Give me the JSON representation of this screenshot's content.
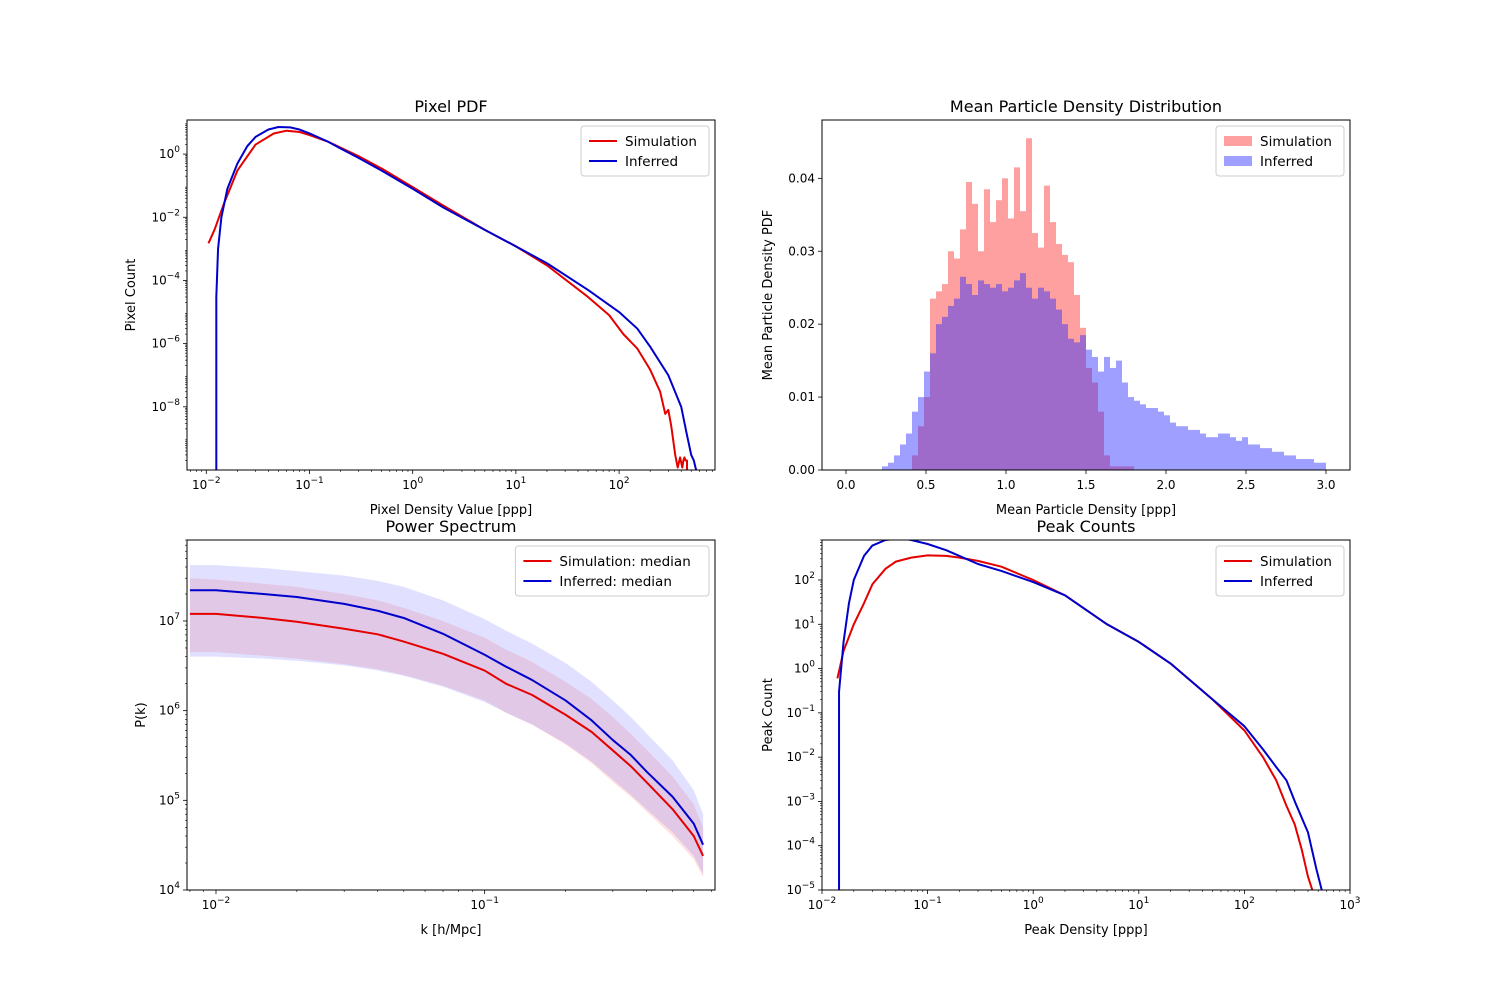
{
  "chart_data": [
    {
      "type": "line",
      "title": "Pixel PDF",
      "xlabel": "Pixel Density Value [ppp]",
      "ylabel": "Pixel Count",
      "xscale": "log",
      "yscale": "log",
      "xlim": [
        0.0065,
        850
      ],
      "ylim": [
        1e-10,
        12
      ],
      "xticks": [
        {
          "v": 0.01,
          "m": "10",
          "e": "−2"
        },
        {
          "v": 0.1,
          "m": "10",
          "e": "−1"
        },
        {
          "v": 1,
          "m": "10",
          "e": "0"
        },
        {
          "v": 10,
          "m": "10",
          "e": "1"
        },
        {
          "v": 100,
          "m": "10",
          "e": "2"
        }
      ],
      "yticks": [
        {
          "v": 1e-08,
          "m": "10",
          "e": "−8"
        },
        {
          "v": 1e-06,
          "m": "10",
          "e": "−6"
        },
        {
          "v": 0.0001,
          "m": "10",
          "e": "−4"
        },
        {
          "v": 0.01,
          "m": "10",
          "e": "−2"
        },
        {
          "v": 1,
          "m": "10",
          "e": "0"
        }
      ],
      "grid": false,
      "legend": "top-right",
      "series": [
        {
          "name": "Simulation",
          "color": "#e50000",
          "x": [
            0.0105,
            0.012,
            0.015,
            0.02,
            0.03,
            0.045,
            0.06,
            0.08,
            0.1,
            0.15,
            0.2,
            0.3,
            0.5,
            1,
            2,
            5,
            10,
            20,
            50,
            80,
            110,
            150,
            200,
            250,
            280,
            300,
            320,
            350,
            370,
            390,
            410,
            420,
            430,
            440,
            455,
            455
          ],
          "y": [
            0.0015,
            0.004,
            0.03,
            0.3,
            2.0,
            4.5,
            5.5,
            5.0,
            4.0,
            2.5,
            1.6,
            0.85,
            0.35,
            0.09,
            0.023,
            0.004,
            0.0012,
            0.0003,
            3e-05,
            8e-06,
            2e-06,
            7e-07,
            1.5e-07,
            3e-08,
            6e-09,
            8e-09,
            2.5e-09,
            3e-10,
            1.2e-10,
            2.5e-10,
            1.2e-10,
            2e-10,
            2.5e-10,
            2e-10,
            2e-10,
            1e-10
          ]
        },
        {
          "name": "Inferred",
          "color": "#0000cc",
          "x": [
            0.0125,
            0.0125,
            0.013,
            0.014,
            0.016,
            0.02,
            0.025,
            0.03,
            0.04,
            0.05,
            0.065,
            0.08,
            0.1,
            0.15,
            0.2,
            0.3,
            0.5,
            1,
            2,
            5,
            10,
            20,
            50,
            100,
            150,
            200,
            300,
            400,
            450,
            500,
            530,
            550,
            560
          ],
          "y": [
            1e-10,
            3e-05,
            0.001,
            0.01,
            0.08,
            0.5,
            1.8,
            3.5,
            6.0,
            7.2,
            7.0,
            6.0,
            4.5,
            2.5,
            1.5,
            0.75,
            0.3,
            0.08,
            0.02,
            0.004,
            0.0012,
            0.00035,
            5e-05,
            1e-05,
            3e-06,
            8e-07,
            1e-07,
            1e-08,
            1.5e-09,
            3e-10,
            2e-10,
            1.2e-10,
            1e-10
          ]
        }
      ]
    },
    {
      "type": "bar",
      "title": "Mean Particle Density Distribution",
      "xlabel": "Mean Particle Density [ppp]",
      "ylabel": "Mean Particle Density PDF",
      "xscale": "linear",
      "yscale": "linear",
      "xlim": [
        -0.15,
        3.15
      ],
      "ylim": [
        0,
        0.048
      ],
      "xticks": [
        {
          "v": 0,
          "label": "0.0"
        },
        {
          "v": 0.5,
          "label": "0.5"
        },
        {
          "v": 1,
          "label": "1.0"
        },
        {
          "v": 1.5,
          "label": "1.5"
        },
        {
          "v": 2,
          "label": "2.0"
        },
        {
          "v": 2.5,
          "label": "2.5"
        },
        {
          "v": 3,
          "label": "3.0"
        }
      ],
      "yticks": [
        {
          "v": 0,
          "label": "0.00"
        },
        {
          "v": 0.01,
          "label": "0.01"
        },
        {
          "v": 0.02,
          "label": "0.02"
        },
        {
          "v": 0.03,
          "label": "0.03"
        },
        {
          "v": 0.04,
          "label": "0.04"
        }
      ],
      "grid": false,
      "legend": "top-right",
      "bin_start": 0.0,
      "bin_width": 0.0375,
      "series": [
        {
          "name": "Simulation",
          "color": "#ff2d2d",
          "opacity": 0.45,
          "values": [
            0,
            0,
            0,
            0,
            0,
            0,
            0,
            0,
            0,
            0,
            0,
            0.002,
            0.006,
            0.01,
            0.0235,
            0.0245,
            0.0255,
            0.03,
            0.029,
            0.033,
            0.0395,
            0.0365,
            0.03,
            0.0385,
            0.034,
            0.037,
            0.04,
            0.0345,
            0.0415,
            0.0355,
            0.0455,
            0.0325,
            0.0305,
            0.039,
            0.034,
            0.031,
            0.0295,
            0.0285,
            0.024,
            0.0195,
            0.014,
            0.012,
            0.008,
            0.002,
            0.0005,
            0.0005,
            0.0005,
            0.0005,
            0,
            0,
            0,
            0,
            0,
            0,
            0,
            0,
            0,
            0,
            0,
            0,
            0,
            0,
            0,
            0,
            0,
            0,
            0,
            0,
            0,
            0,
            0,
            0,
            0,
            0,
            0,
            0,
            0,
            0,
            0,
            0
          ]
        },
        {
          "name": "Inferred",
          "color": "#2a2aff",
          "opacity": 0.45,
          "values": [
            0,
            0,
            0,
            0,
            0,
            0,
            0.0005,
            0.001,
            0.002,
            0.0035,
            0.005,
            0.008,
            0.01,
            0.0135,
            0.016,
            0.02,
            0.021,
            0.0225,
            0.0235,
            0.0265,
            0.0255,
            0.024,
            0.026,
            0.0255,
            0.025,
            0.0255,
            0.0245,
            0.025,
            0.026,
            0.027,
            0.025,
            0.0235,
            0.025,
            0.0245,
            0.0235,
            0.022,
            0.02,
            0.018,
            0.0175,
            0.0185,
            0.0165,
            0.0155,
            0.0135,
            0.0155,
            0.014,
            0.015,
            0.012,
            0.01,
            0.0095,
            0.009,
            0.0085,
            0.0085,
            0.008,
            0.0075,
            0.0065,
            0.006,
            0.006,
            0.0055,
            0.0055,
            0.005,
            0.0045,
            0.0045,
            0.005,
            0.005,
            0.0045,
            0.004,
            0.0045,
            0.0035,
            0.0035,
            0.003,
            0.003,
            0.0025,
            0.0025,
            0.002,
            0.002,
            0.0015,
            0.0015,
            0.0015,
            0.001,
            0.001
          ]
        }
      ]
    },
    {
      "type": "line",
      "title": "Power Spectrum",
      "xlabel": "k [h/Mpc]",
      "ylabel": "P(k)",
      "xscale": "log",
      "yscale": "log",
      "xlim": [
        0.0078,
        0.72
      ],
      "ylim": [
        10000,
        80000000
      ],
      "xticks": [
        {
          "v": 0.01,
          "m": "10",
          "e": "−2"
        },
        {
          "v": 0.1,
          "m": "10",
          "e": "−1"
        }
      ],
      "yticks": [
        {
          "v": 10000,
          "m": "10",
          "e": "4"
        },
        {
          "v": 100000,
          "m": "10",
          "e": "5"
        },
        {
          "v": 1000000,
          "m": "10",
          "e": "6"
        },
        {
          "v": 10000000,
          "m": "10",
          "e": "7"
        }
      ],
      "grid": false,
      "legend": "top-right",
      "series": [
        {
          "name": "Simulation: median",
          "color": "#e50000",
          "band_color": "#ff6666",
          "x": [
            0.008,
            0.01,
            0.015,
            0.02,
            0.03,
            0.04,
            0.05,
            0.07,
            0.1,
            0.12,
            0.15,
            0.2,
            0.25,
            0.3,
            0.35,
            0.4,
            0.5,
            0.6,
            0.65
          ],
          "y": [
            12000000,
            12000000,
            10800000,
            9800000,
            8200000,
            7100000,
            5900000,
            4300000,
            2800000,
            2000000,
            1500000,
            900000,
            580000,
            360000,
            240000,
            160000,
            80000,
            40000,
            24000
          ],
          "lower": [
            4500000,
            4500000,
            4100000,
            3800000,
            3300000,
            2900000,
            2500000,
            1900000,
            1300000,
            950000,
            700000,
            420000,
            260000,
            160000,
            110000,
            75000,
            40000,
            22000,
            14000
          ],
          "upper": [
            30000000,
            29000000,
            26000000,
            24000000,
            20000000,
            17000000,
            14000000,
            10000000,
            6500000,
            4800000,
            3500000,
            2100000,
            1350000,
            850000,
            550000,
            370000,
            185000,
            90000,
            50000
          ]
        },
        {
          "name": "Inferred: median",
          "color": "#0000cc",
          "band_color": "#6b6bff",
          "x": [
            0.008,
            0.01,
            0.015,
            0.02,
            0.03,
            0.04,
            0.05,
            0.07,
            0.1,
            0.12,
            0.15,
            0.2,
            0.25,
            0.3,
            0.35,
            0.4,
            0.5,
            0.6,
            0.65
          ],
          "y": [
            22000000,
            22000000,
            20000000,
            18500000,
            15500000,
            13000000,
            10800000,
            7200000,
            4200000,
            3100000,
            2200000,
            1300000,
            780000,
            470000,
            320000,
            210000,
            110000,
            55000,
            32000
          ],
          "lower": [
            4000000,
            4000000,
            3800000,
            3600000,
            3200000,
            2800000,
            2450000,
            1850000,
            1250000,
            950000,
            700000,
            430000,
            270000,
            170000,
            115000,
            80000,
            44000,
            24000,
            15000
          ],
          "upper": [
            42000000,
            42000000,
            39000000,
            36000000,
            32000000,
            28000000,
            24000000,
            17000000,
            10500000,
            7800000,
            5600000,
            3400000,
            2100000,
            1300000,
            850000,
            560000,
            280000,
            130000,
            70000
          ]
        }
      ]
    },
    {
      "type": "line",
      "title": "Peak Counts",
      "xlabel": "Peak Density [ppp]",
      "ylabel": "Peak Count",
      "xscale": "log",
      "yscale": "log",
      "xlim": [
        0.01,
        1000
      ],
      "ylim": [
        1e-05,
        800
      ],
      "xticks": [
        {
          "v": 0.01,
          "m": "10",
          "e": "−2"
        },
        {
          "v": 0.1,
          "m": "10",
          "e": "−1"
        },
        {
          "v": 1,
          "m": "10",
          "e": "0"
        },
        {
          "v": 10,
          "m": "10",
          "e": "1"
        },
        {
          "v": 100,
          "m": "10",
          "e": "2"
        },
        {
          "v": 1000,
          "m": "10",
          "e": "3"
        }
      ],
      "yticks": [
        {
          "v": 1e-05,
          "m": "10",
          "e": "−5"
        },
        {
          "v": 0.0001,
          "m": "10",
          "e": "−4"
        },
        {
          "v": 0.001,
          "m": "10",
          "e": "−3"
        },
        {
          "v": 0.01,
          "m": "10",
          "e": "−2"
        },
        {
          "v": 0.1,
          "m": "10",
          "e": "−1"
        },
        {
          "v": 1,
          "m": "10",
          "e": "0"
        },
        {
          "v": 10,
          "m": "10",
          "e": "1"
        },
        {
          "v": 100,
          "m": "10",
          "e": "2"
        }
      ],
      "grid": false,
      "legend": "top-right",
      "series": [
        {
          "name": "Simulation",
          "color": "#e50000",
          "x": [
            0.014,
            0.016,
            0.02,
            0.025,
            0.03,
            0.04,
            0.05,
            0.07,
            0.1,
            0.15,
            0.2,
            0.3,
            0.5,
            1,
            2,
            5,
            10,
            20,
            50,
            100,
            150,
            200,
            250,
            300,
            350,
            400,
            440
          ],
          "y": [
            0.6,
            2.5,
            10,
            30,
            80,
            180,
            260,
            320,
            360,
            350,
            320,
            270,
            200,
            100,
            45,
            10,
            4,
            1.3,
            0.2,
            0.04,
            0.01,
            0.003,
            0.0008,
            0.0003,
            8e-05,
            2e-05,
            1e-05
          ]
        },
        {
          "name": "Inferred",
          "color": "#0000cc",
          "x": [
            0.0145,
            0.0145,
            0.016,
            0.018,
            0.02,
            0.025,
            0.03,
            0.04,
            0.05,
            0.06,
            0.07,
            0.1,
            0.15,
            0.2,
            0.3,
            0.5,
            1,
            2,
            5,
            10,
            20,
            50,
            100,
            150,
            200,
            250,
            300,
            400,
            480,
            540
          ],
          "y": [
            1e-05,
            0.3,
            4,
            30,
            100,
            350,
            600,
            800,
            850,
            850,
            800,
            650,
            470,
            350,
            230,
            160,
            90,
            45,
            10,
            4,
            1.3,
            0.2,
            0.05,
            0.015,
            0.006,
            0.003,
            0.001,
            0.0002,
            3e-05,
            1e-05
          ]
        }
      ]
    }
  ]
}
